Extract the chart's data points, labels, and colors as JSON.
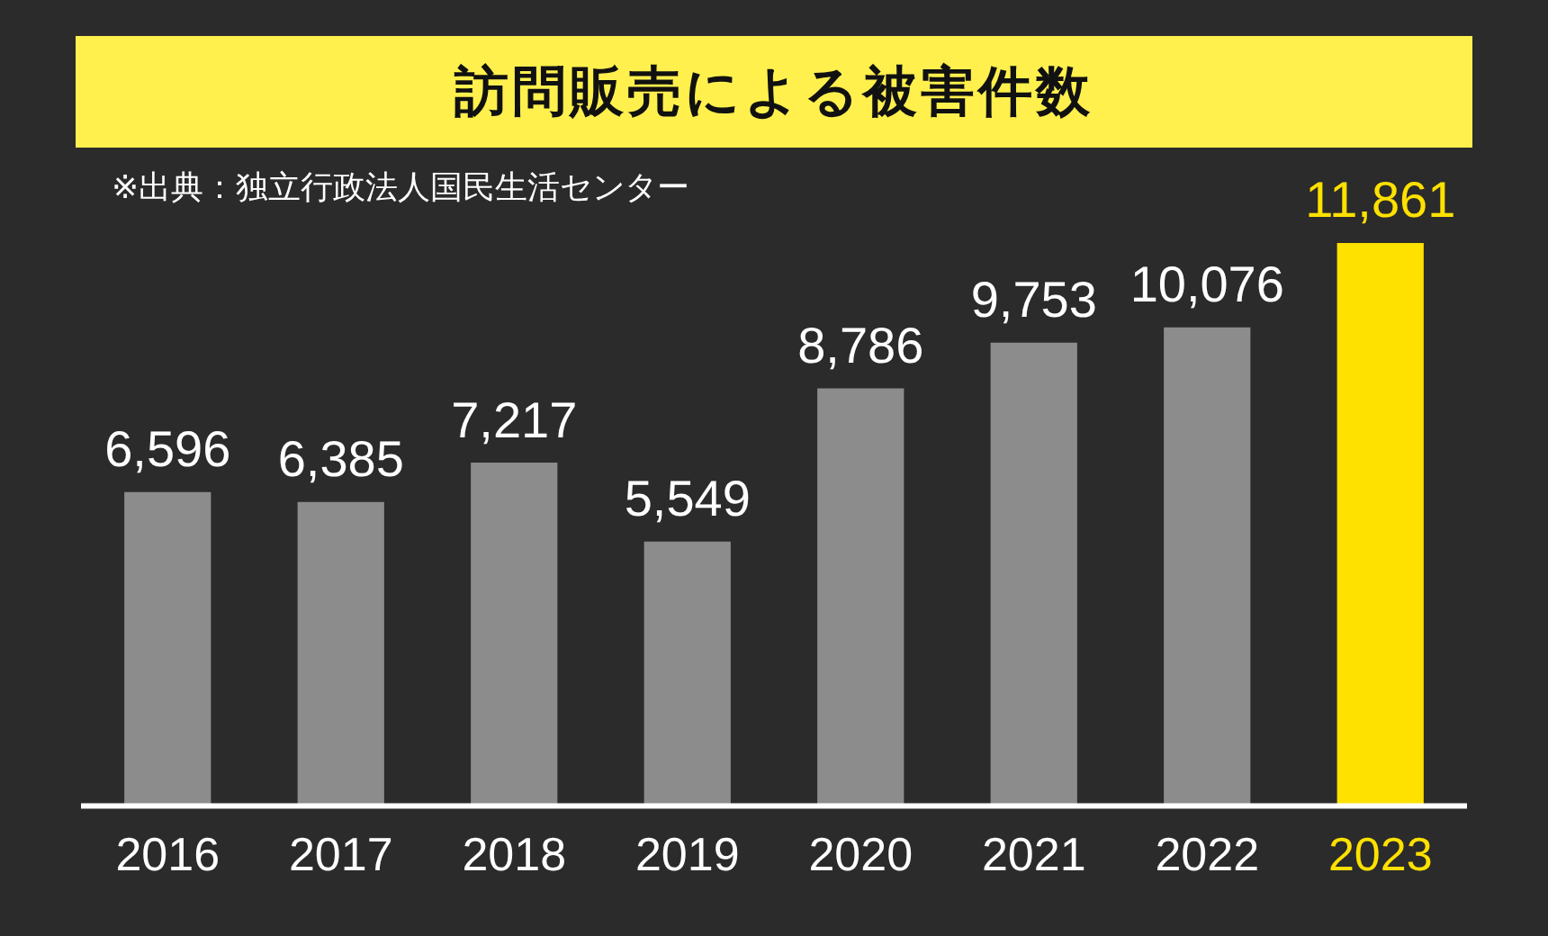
{
  "chart_data": {
    "type": "bar",
    "title": "訪問販売による被害件数",
    "annotations": [
      "※出典：独立行政法人国民生活センター"
    ],
    "categories": [
      "2016",
      "2017",
      "2018",
      "2019",
      "2020",
      "2021",
      "2022",
      "2023"
    ],
    "values": [
      6596,
      6385,
      7217,
      5549,
      8786,
      9753,
      10076,
      11861
    ],
    "colors": [
      "#8c8c8c",
      "#8c8c8c",
      "#8c8c8c",
      "#8c8c8c",
      "#8c8c8c",
      "#8c8c8c",
      "#8c8c8c",
      "#ffe100"
    ],
    "value_labels": [
      "6,596",
      "6,385",
      "7,217",
      "5,549",
      "8,786",
      "9,753",
      "10,076",
      "11,861"
    ],
    "grid": false,
    "legend": false
  }
}
